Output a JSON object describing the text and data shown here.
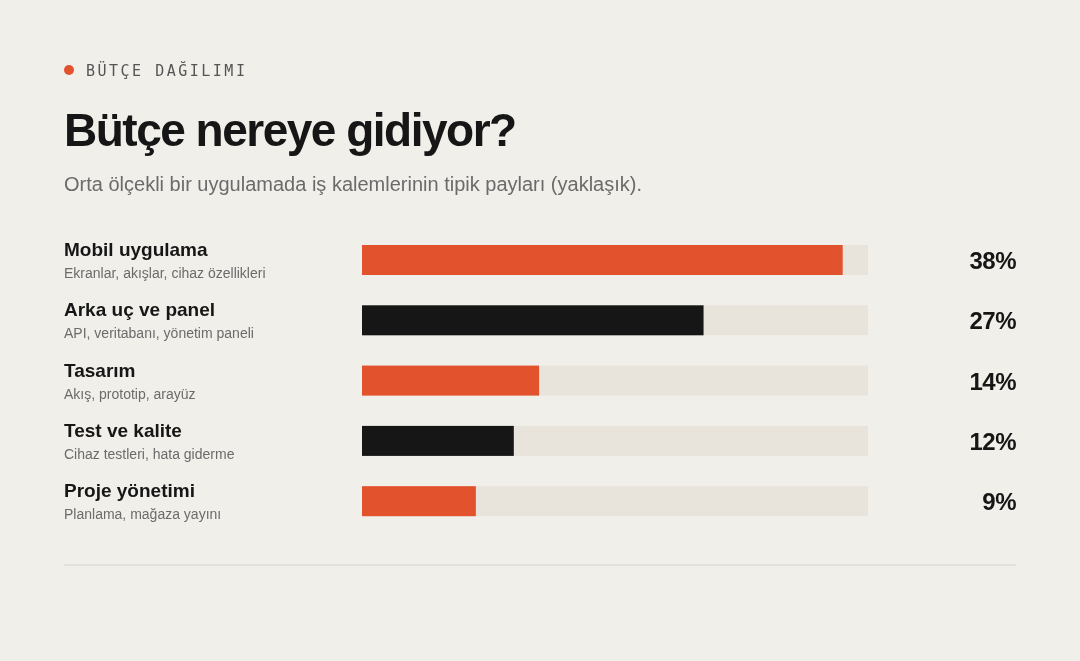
{
  "chart_data": {
    "type": "bar",
    "orientation": "horizontal",
    "title": "Bütçe nereye gidiyor?",
    "subtitle": "Orta ölçekli bir uygulamada iş kalemlerinin tipik payları (yaklaşık).",
    "annotations": [
      "BÜTÇE DAĞILIMI"
    ],
    "categories": [
      "Mobil uygulama\nEkranlar, akışlar, cihaz özellikleri",
      "Arka uç ve panel\nAPI, veritabanı, yönetim paneli",
      "Tasarım\nAkış, prototip, arayüz",
      "Test ve kalite\nCihaz testleri, hata giderme",
      "Proje yönetimi\nPlanlama, mağaza yayını"
    ],
    "values": [
      38,
      27,
      14,
      12,
      9
    ],
    "colors": [
      "#e2522c",
      "#161616",
      "#e2522c",
      "#161616",
      "#e2522c"
    ],
    "value_labels": [
      "38%",
      "27%",
      "14%",
      "12%",
      "9%"
    ],
    "xlim": [
      0,
      40
    ]
  }
}
